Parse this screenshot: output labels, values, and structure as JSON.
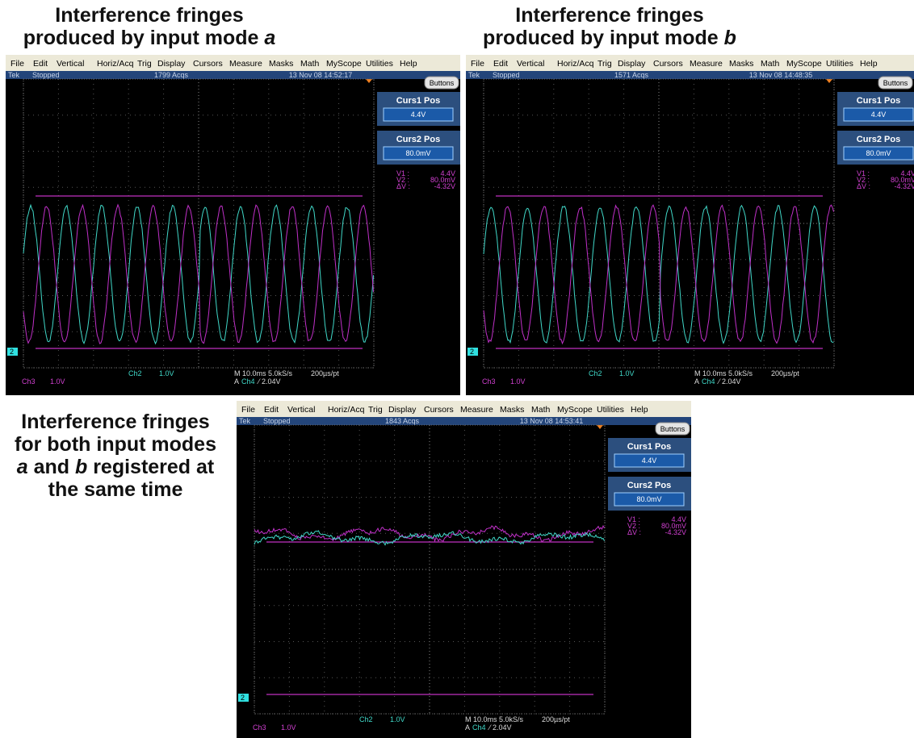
{
  "captions": [
    {
      "lines": [
        [
          {
            "text": "Interference fringes"
          }
        ],
        [
          {
            "text": "produced by input mode "
          },
          {
            "text": "a",
            "italic": true
          }
        ]
      ]
    },
    {
      "lines": [
        [
          {
            "text": "Interference fringes"
          }
        ],
        [
          {
            "text": "produced by input mode "
          },
          {
            "text": "b",
            "italic": true
          }
        ]
      ]
    },
    {
      "lines": [
        [
          {
            "text": "Interference fringes"
          }
        ],
        [
          {
            "text": "for both input modes"
          }
        ],
        [
          {
            "text": "a",
            "italic": true
          },
          {
            "text": " and "
          },
          {
            "text": "b",
            "italic": true
          },
          {
            "text": " registered at"
          }
        ],
        [
          {
            "text": "the same time"
          }
        ]
      ]
    }
  ],
  "menu": [
    "File",
    "Edit",
    "Vertical",
    "Horiz/Acq",
    "Trig",
    "Display",
    "Cursors",
    "Measure",
    "Masks",
    "Math",
    "MyScope",
    "Utilities",
    "Help"
  ],
  "panels": [
    {
      "status": "Tek",
      "state": "Stopped",
      "acqs": "1799 Acqs",
      "date": "13 Nov 08 14:52:17",
      "button": "Buttons",
      "cursors": [
        {
          "label": "Curs1 Pos",
          "value": "4.4V"
        },
        {
          "label": "Curs2 Pos",
          "value": "80.0mV"
        }
      ],
      "readout": [
        [
          "V1 :",
          "4.4V"
        ],
        [
          "V2 :",
          "80.0mV"
        ],
        [
          "ΔV :",
          "-4.32V"
        ]
      ],
      "channels": [
        {
          "name": "Ch3",
          "scale": "1.0V"
        },
        {
          "name": "Ch2",
          "scale": "1.0V"
        }
      ],
      "timebase": "M 10.0ms 5.0kS/s",
      "resolution": "200µs/pt",
      "trigger": {
        "source": "A",
        "channel": "Ch4",
        "level": "⁄ 2.04V"
      },
      "marker": "2"
    },
    {
      "status": "Tek",
      "state": "Stopped",
      "acqs": "1571 Acqs",
      "date": "13 Nov 08 14:48:35",
      "button": "Buttons",
      "cursors": [
        {
          "label": "Curs1 Pos",
          "value": "4.4V"
        },
        {
          "label": "Curs2 Pos",
          "value": "80.0mV"
        }
      ],
      "readout": [
        [
          "V1 :",
          "4.4V"
        ],
        [
          "V2 :",
          "80.0mV"
        ],
        [
          "ΔV :",
          "-4.32V"
        ]
      ],
      "channels": [
        {
          "name": "Ch3",
          "scale": "1.0V"
        },
        {
          "name": "Ch2",
          "scale": "1.0V"
        }
      ],
      "timebase": "M 10.0ms 5.0kS/s",
      "resolution": "200µs/pt",
      "trigger": {
        "source": "A",
        "channel": "Ch4",
        "level": "⁄ 2.04V"
      },
      "marker": "2"
    },
    {
      "status": "Tek",
      "state": "Stopped",
      "acqs": "1843 Acqs",
      "date": "13 Nov 08 14:53:41",
      "button": "Buttons",
      "cursors": [
        {
          "label": "Curs1 Pos",
          "value": "4.4V"
        },
        {
          "label": "Curs2 Pos",
          "value": "80.0mV"
        }
      ],
      "readout": [
        [
          "V1 :",
          "4.4V"
        ],
        [
          "V2 :",
          "80.0mV"
        ],
        [
          "ΔV :",
          "-4.32V"
        ]
      ],
      "channels": [
        {
          "name": "Ch3",
          "scale": "1.0V"
        },
        {
          "name": "Ch2",
          "scale": "1.0V"
        }
      ],
      "timebase": "M 10.0ms 5.0kS/s",
      "resolution": "200µs/pt",
      "trigger": {
        "source": "A",
        "channel": "Ch4",
        "level": "⁄ 2.04V"
      },
      "marker": "2"
    }
  ]
}
